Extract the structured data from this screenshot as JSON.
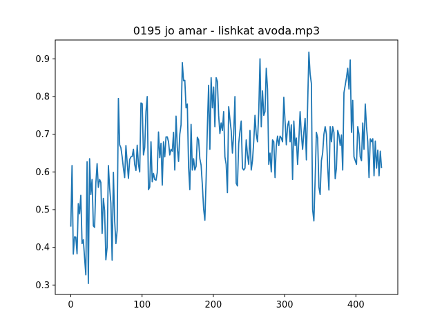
{
  "chart_data": {
    "type": "line",
    "title": "0195 jo amar - lishkat avoda.mp3",
    "xlabel": "",
    "ylabel": "",
    "xlim": [
      -21.8,
      458.8
    ],
    "ylim": [
      0.275,
      0.95
    ],
    "x_ticks": [
      0,
      100,
      200,
      300,
      400
    ],
    "y_ticks": [
      0.3,
      0.4,
      0.5,
      0.6,
      0.7,
      0.8,
      0.9
    ],
    "grid": false,
    "series": [
      {
        "color": "#1f77b4",
        "values": [
          0.455,
          0.617,
          0.382,
          0.428,
          0.427,
          0.383,
          0.516,
          0.489,
          0.538,
          0.41,
          0.42,
          0.372,
          0.327,
          0.627,
          0.304,
          0.635,
          0.54,
          0.58,
          0.457,
          0.453,
          0.57,
          0.622,
          0.559,
          0.58,
          0.572,
          0.437,
          0.53,
          0.497,
          0.367,
          0.4,
          0.617,
          0.558,
          0.517,
          0.366,
          0.599,
          0.472,
          0.41,
          0.445,
          0.795,
          0.672,
          0.664,
          0.64,
          0.61,
          0.585,
          0.67,
          0.625,
          0.583,
          0.633,
          0.64,
          0.641,
          0.66,
          0.62,
          0.604,
          0.671,
          0.62,
          0.6,
          0.783,
          0.781,
          0.645,
          0.665,
          0.76,
          0.8,
          0.553,
          0.56,
          0.68,
          0.574,
          0.596,
          0.58,
          0.578,
          0.598,
          0.706,
          0.638,
          0.676,
          0.565,
          0.68,
          0.64,
          0.693,
          0.693,
          0.68,
          0.645,
          0.66,
          0.655,
          0.705,
          0.605,
          0.748,
          0.665,
          0.628,
          0.7,
          0.725,
          0.89,
          0.842,
          0.843,
          0.77,
          0.78,
          0.613,
          0.553,
          0.726,
          0.605,
          0.635,
          0.605,
          0.615,
          0.692,
          0.685,
          0.635,
          0.618,
          0.565,
          0.503,
          0.472,
          0.58,
          0.72,
          0.83,
          0.66,
          0.85,
          0.77,
          0.825,
          0.72,
          0.85,
          0.84,
          0.75,
          0.702,
          0.73,
          0.71,
          0.76,
          0.64,
          0.62,
          0.545,
          0.773,
          0.74,
          0.71,
          0.65,
          0.7,
          0.8,
          0.57,
          0.563,
          0.675,
          0.708,
          0.735,
          0.61,
          0.605,
          0.61,
          0.685,
          0.645,
          0.62,
          0.71,
          0.605,
          0.63,
          0.68,
          0.75,
          0.7,
          0.68,
          0.76,
          0.9,
          0.72,
          0.815,
          0.75,
          0.76,
          0.875,
          0.82,
          0.62,
          0.65,
          0.6,
          0.685,
          0.68,
          0.585,
          0.67,
          0.695,
          0.67,
          0.695,
          0.69,
          0.68,
          0.798,
          0.735,
          0.672,
          0.722,
          0.735,
          0.68,
          0.725,
          0.58,
          0.735,
          0.67,
          0.69,
          0.62,
          0.685,
          0.76,
          0.7,
          0.66,
          0.705,
          0.742,
          0.632,
          0.775,
          0.918,
          0.86,
          0.835,
          0.5,
          0.47,
          0.58,
          0.705,
          0.69,
          0.56,
          0.54,
          0.63,
          0.65,
          0.7,
          0.72,
          0.7,
          0.615,
          0.552,
          0.72,
          0.68,
          0.72,
          0.705,
          0.582,
          0.61,
          0.71,
          0.698,
          0.67,
          0.698,
          0.605,
          0.81,
          0.83,
          0.85,
          0.875,
          0.82,
          0.897,
          0.705,
          0.79,
          0.64,
          0.63,
          0.62,
          0.72,
          0.7,
          0.64,
          0.63,
          0.73,
          0.66,
          0.78,
          0.72,
          0.68,
          0.585,
          0.688,
          0.68,
          0.688,
          0.59,
          0.682,
          0.61,
          0.658,
          0.59,
          0.655,
          0.61
        ]
      }
    ]
  }
}
